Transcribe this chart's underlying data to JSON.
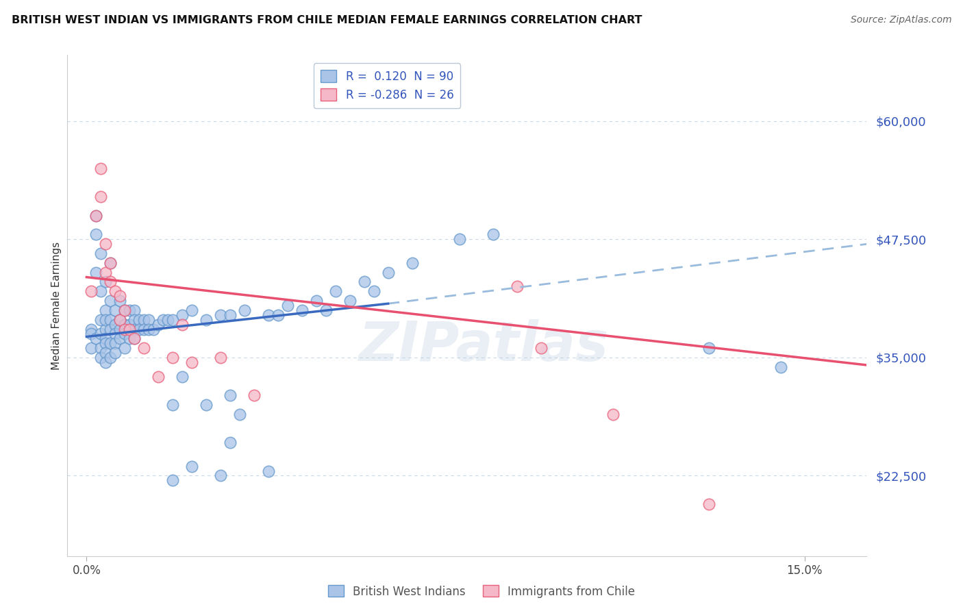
{
  "title": "BRITISH WEST INDIAN VS IMMIGRANTS FROM CHILE MEDIAN FEMALE EARNINGS CORRELATION CHART",
  "source": "Source: ZipAtlas.com",
  "ylabel": "Median Female Earnings",
  "ytick_labels": [
    "$22,500",
    "$35,000",
    "$47,500",
    "$60,000"
  ],
  "ytick_values": [
    22500,
    35000,
    47500,
    60000
  ],
  "xtick_labels": [
    "0.0%",
    "15.0%"
  ],
  "xtick_values": [
    0.0,
    0.15
  ],
  "xlim": [
    -0.004,
    0.163
  ],
  "ylim": [
    14000,
    67000
  ],
  "legend1_label": "R =  0.120  N = 90",
  "legend2_label": "R = -0.286  N = 26",
  "watermark": "ZIPatlas",
  "bottom_legend1": "British West Indians",
  "bottom_legend2": "Immigrants from Chile",
  "blue_color_fill": "#aac4e8",
  "blue_color_edge": "#6699cc",
  "pink_color_fill": "#f5b8c8",
  "pink_color_edge": "#e8607a",
  "blue_line_color": "#3a6abf",
  "blue_dash_color": "#99bbdd",
  "pink_line_color": "#e85070",
  "blue_line_solid_x0": 0.0,
  "blue_line_solid_x1": 0.063,
  "blue_line_solid_y0": 37200,
  "blue_line_solid_y1": 40700,
  "blue_line_dash_x0": 0.063,
  "blue_line_dash_x1": 0.163,
  "blue_line_dash_y0": 40700,
  "blue_line_dash_y1": 47000,
  "pink_line_x0": 0.0,
  "pink_line_x1": 0.163,
  "pink_line_y0": 43500,
  "pink_line_y1": 34200,
  "blue_scatter_x": [
    0.001,
    0.001,
    0.001,
    0.002,
    0.002,
    0.002,
    0.002,
    0.003,
    0.003,
    0.003,
    0.003,
    0.003,
    0.003,
    0.004,
    0.004,
    0.004,
    0.004,
    0.004,
    0.004,
    0.004,
    0.004,
    0.005,
    0.005,
    0.005,
    0.005,
    0.005,
    0.005,
    0.006,
    0.006,
    0.006,
    0.006,
    0.006,
    0.007,
    0.007,
    0.007,
    0.007,
    0.008,
    0.008,
    0.008,
    0.008,
    0.009,
    0.009,
    0.009,
    0.01,
    0.01,
    0.01,
    0.01,
    0.011,
    0.011,
    0.012,
    0.012,
    0.013,
    0.013,
    0.014,
    0.015,
    0.016,
    0.017,
    0.018,
    0.02,
    0.022,
    0.025,
    0.028,
    0.03,
    0.033,
    0.038,
    0.04,
    0.045,
    0.05,
    0.055,
    0.06,
    0.018,
    0.02,
    0.025,
    0.03,
    0.032,
    0.03,
    0.018,
    0.022,
    0.028,
    0.038,
    0.042,
    0.048,
    0.052,
    0.058,
    0.063,
    0.068,
    0.078,
    0.085,
    0.13,
    0.145
  ],
  "blue_scatter_y": [
    38000,
    37500,
    36000,
    44000,
    50000,
    48000,
    37000,
    42000,
    46000,
    39000,
    37500,
    36000,
    35000,
    38000,
    40000,
    43000,
    39000,
    37000,
    36500,
    35500,
    34500,
    45000,
    41000,
    39000,
    38000,
    36500,
    35000,
    40000,
    38500,
    37500,
    36500,
    35500,
    41000,
    39000,
    38000,
    37000,
    40000,
    38500,
    37500,
    36000,
    40000,
    38500,
    37000,
    40000,
    39000,
    38000,
    37000,
    39000,
    38000,
    39000,
    38000,
    39000,
    38000,
    38000,
    38500,
    39000,
    39000,
    39000,
    39500,
    40000,
    39000,
    39500,
    39500,
    40000,
    39500,
    39500,
    40000,
    40000,
    41000,
    42000,
    30000,
    33000,
    30000,
    31000,
    29000,
    26000,
    22000,
    23500,
    22500,
    23000,
    40500,
    41000,
    42000,
    43000,
    44000,
    45000,
    47500,
    48000,
    36000,
    34000
  ],
  "pink_scatter_x": [
    0.001,
    0.002,
    0.003,
    0.003,
    0.004,
    0.004,
    0.005,
    0.005,
    0.006,
    0.007,
    0.007,
    0.008,
    0.008,
    0.009,
    0.01,
    0.012,
    0.015,
    0.018,
    0.02,
    0.022,
    0.028,
    0.035,
    0.09,
    0.095,
    0.11,
    0.13
  ],
  "pink_scatter_y": [
    42000,
    50000,
    55000,
    52000,
    47000,
    44000,
    45000,
    43000,
    42000,
    41500,
    39000,
    40000,
    38000,
    38000,
    37000,
    36000,
    33000,
    35000,
    38500,
    34500,
    35000,
    31000,
    42500,
    36000,
    29000,
    19500
  ]
}
